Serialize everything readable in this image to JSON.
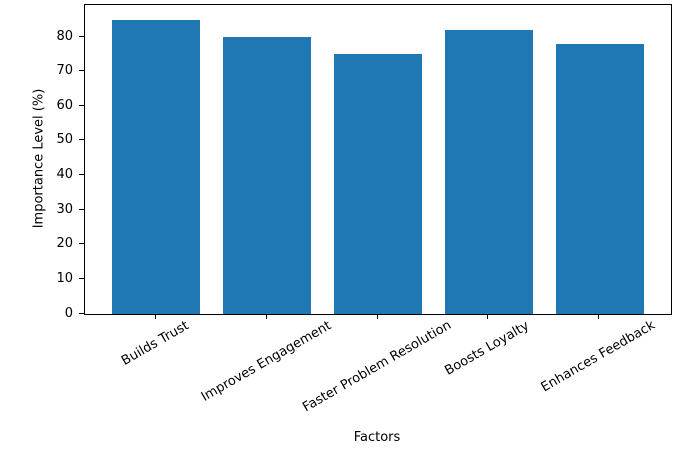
{
  "figure": {
    "background": "#ffffff",
    "text_color": "#000000",
    "axis_color": "#000000"
  },
  "chart_data": {
    "type": "bar",
    "title": "",
    "xlabel": "Factors",
    "ylabel": "Importance Level (%)",
    "categories": [
      "Builds Trust",
      "Improves Engagement",
      "Faster Problem Resolution",
      "Boosts Loyalty",
      "Enhances Feedback"
    ],
    "values": [
      85,
      80,
      75,
      82,
      78
    ],
    "bar_color": "#1f77b4",
    "bar_width": 0.8,
    "xlim": [
      -0.64,
      4.64
    ],
    "ylim": [
      0,
      89.25
    ],
    "yticks": [
      0,
      10,
      20,
      30,
      40,
      50,
      60,
      70,
      80
    ],
    "xtick_rotation_deg": 30,
    "grid": false,
    "legend_position": "none"
  }
}
